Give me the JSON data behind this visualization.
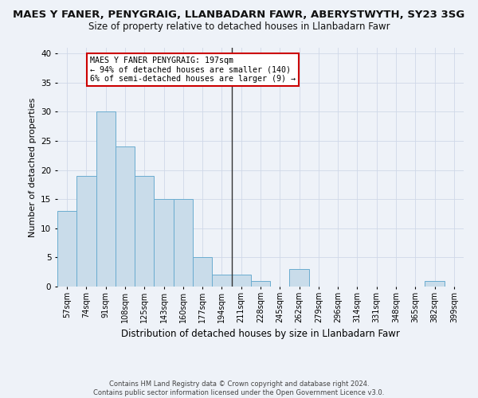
{
  "title": "MAES Y FANER, PENYGRAIG, LLANBADARN FAWR, ABERYSTWYTH, SY23 3SG",
  "subtitle": "Size of property relative to detached houses in Llanbadarn Fawr",
  "xlabel": "Distribution of detached houses by size in Llanbadarn Fawr",
  "ylabel": "Number of detached properties",
  "categories": [
    "57sqm",
    "74sqm",
    "91sqm",
    "108sqm",
    "125sqm",
    "143sqm",
    "160sqm",
    "177sqm",
    "194sqm",
    "211sqm",
    "228sqm",
    "245sqm",
    "262sqm",
    "279sqm",
    "296sqm",
    "314sqm",
    "331sqm",
    "348sqm",
    "365sqm",
    "382sqm",
    "399sqm"
  ],
  "bar_heights": [
    13,
    19,
    30,
    24,
    19,
    15,
    15,
    5,
    2,
    2,
    1,
    0,
    3,
    0,
    0,
    0,
    0,
    0,
    0,
    1,
    0
  ],
  "bar_color": "#c9dcea",
  "bar_edge_color": "#6aacd0",
  "vline_color": "#333333",
  "annotation_text": "MAES Y FANER PENYGRAIG: 197sqm\n← 94% of detached houses are smaller (140)\n6% of semi-detached houses are larger (9) →",
  "annotation_box_color": "#ffffff",
  "annotation_box_edge": "#cc0000",
  "ylim": [
    0,
    41
  ],
  "yticks": [
    0,
    5,
    10,
    15,
    20,
    25,
    30,
    35,
    40
  ],
  "grid_color": "#d0d8e8",
  "background_color": "#eef2f8",
  "title_fontsize": 9.5,
  "subtitle_fontsize": 8.5,
  "footnote": "Contains HM Land Registry data © Crown copyright and database right 2024.\nContains public sector information licensed under the Open Government Licence v3.0."
}
